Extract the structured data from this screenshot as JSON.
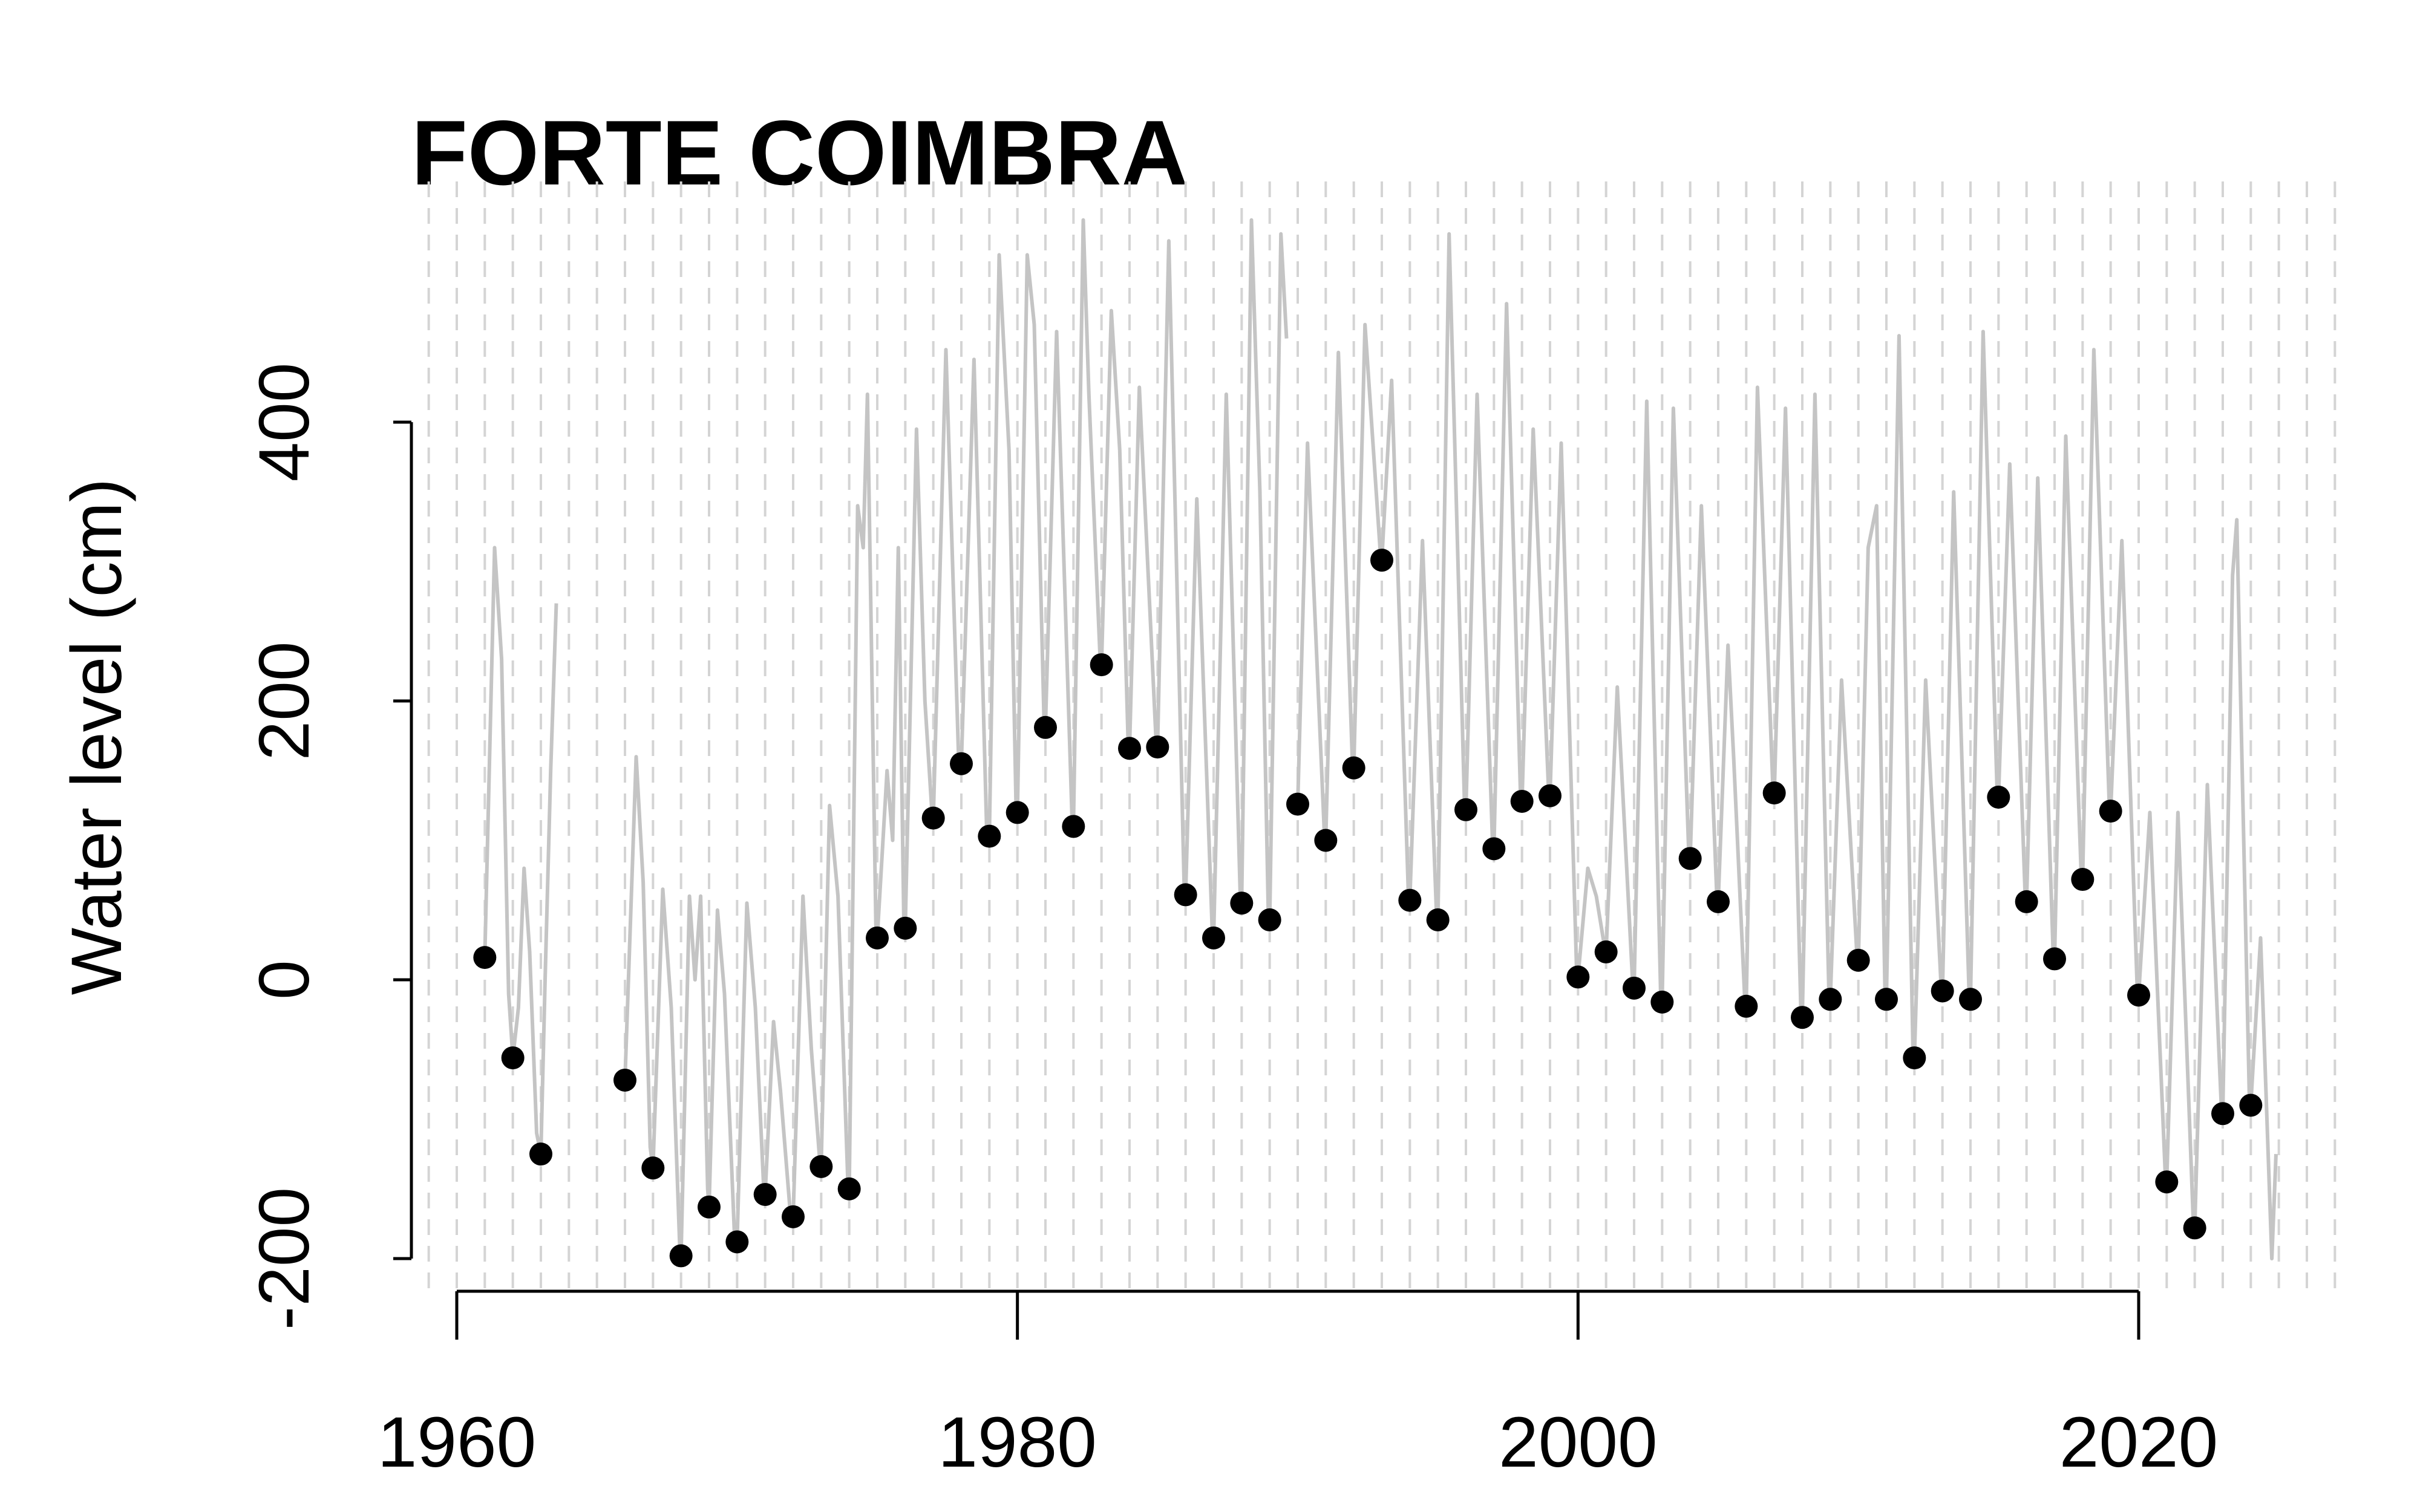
{
  "chart_data": {
    "type": "scatter",
    "title": "FORTE COIMBRA",
    "xlabel": "",
    "ylabel": "Water level (cm)",
    "xlim": [
      1958.5,
      2027.5
    ],
    "ylim": [
      -200,
      560
    ],
    "x_ticks": [
      1960,
      1980,
      2000,
      2020
    ],
    "y_ticks": [
      -200,
      0,
      200,
      400
    ],
    "x_tick_labels": [
      "1960",
      "1980",
      "2000",
      "2020"
    ],
    "y_tick_labels": [
      "-200",
      "0",
      "200",
      "400"
    ],
    "grid": "vertical dashed lines at every year",
    "colors": {
      "points": "#000000",
      "daily_line": "#c4c4c4",
      "grid": "#d4d4d4",
      "axes": "#000000"
    },
    "series": [
      {
        "style": "points",
        "x": [
          1961,
          1962,
          1963,
          1966,
          1967,
          1968,
          1969,
          1970,
          1971,
          1972,
          1973,
          1974,
          1975,
          1976,
          1977,
          1978,
          1979,
          1980,
          1981,
          1982,
          1983,
          1984,
          1985,
          1986,
          1987,
          1988,
          1989,
          1990,
          1991,
          1992,
          1993,
          1994,
          1995,
          1996,
          1997,
          1998,
          1999,
          2000,
          2001,
          2002,
          2003,
          2004,
          2005,
          2006,
          2007,
          2008,
          2009,
          2010,
          2011,
          2012,
          2013,
          2014,
          2015,
          2016,
          2017,
          2018,
          2019,
          2020,
          2021,
          2022,
          2023,
          2024
        ],
        "y": [
          16,
          -56,
          -125,
          -72,
          -135,
          -198,
          -163,
          -188,
          -154,
          -170,
          -134,
          -150,
          30,
          37,
          116,
          155,
          103,
          120,
          181,
          110,
          226,
          166,
          167,
          61,
          30,
          55,
          43,
          126,
          100,
          152,
          301,
          57,
          43,
          122,
          94,
          128,
          132,
          2,
          20,
          -6,
          -16,
          87,
          56,
          -19,
          134,
          -27,
          -14,
          14,
          -14,
          -56,
          -8,
          -14,
          131,
          56,
          15,
          72,
          121,
          -11,
          -145,
          -178,
          -96,
          -90
        ]
      },
      {
        "style": "line",
        "segments": [
          [
            [
              1961.0,
              16
            ],
            [
              1961.35,
              310
            ],
            [
              1961.6,
              230
            ],
            [
              1961.85,
              -10
            ],
            [
              1962.0,
              -56
            ],
            [
              1962.2,
              -20
            ],
            [
              1962.4,
              80
            ],
            [
              1962.6,
              20
            ],
            [
              1962.85,
              -110
            ],
            [
              1963.0,
              -125
            ],
            [
              1963.15,
              0
            ],
            [
              1963.35,
              150
            ],
            [
              1963.55,
              270
            ]
          ],
          [
            [
              1966.0,
              -72
            ],
            [
              1966.4,
              160
            ],
            [
              1966.65,
              70
            ],
            [
              1966.9,
              -120
            ],
            [
              1967.0,
              -135
            ],
            [
              1967.35,
              65
            ],
            [
              1967.65,
              -20
            ],
            [
              1967.95,
              -190
            ],
            [
              1968.0,
              -198
            ],
            [
              1968.3,
              60
            ],
            [
              1968.5,
              0
            ],
            [
              1968.7,
              60
            ],
            [
              1968.95,
              -150
            ],
            [
              1969.0,
              -163
            ],
            [
              1969.3,
              50
            ],
            [
              1969.55,
              -10
            ],
            [
              1969.9,
              -180
            ],
            [
              1970.0,
              -188
            ],
            [
              1970.35,
              55
            ],
            [
              1970.65,
              -20
            ],
            [
              1970.95,
              -150
            ],
            [
              1971.0,
              -154
            ],
            [
              1971.3,
              -30
            ],
            [
              1971.55,
              -80
            ],
            [
              1971.9,
              -168
            ],
            [
              1972.0,
              -170
            ],
            [
              1972.35,
              60
            ],
            [
              1972.65,
              -50
            ],
            [
              1972.95,
              -130
            ],
            [
              1973.0,
              -134
            ],
            [
              1973.3,
              125
            ],
            [
              1973.6,
              60
            ],
            [
              1973.95,
              -145
            ],
            [
              1974.0,
              -150
            ],
            [
              1974.3,
              340
            ],
            [
              1974.5,
              310
            ],
            [
              1974.65,
              420
            ],
            [
              1974.95,
              40
            ],
            [
              1975.0,
              30
            ],
            [
              1975.35,
              150
            ],
            [
              1975.55,
              100
            ],
            [
              1975.75,
              310
            ],
            [
              1975.95,
              40
            ],
            [
              1976.0,
              37
            ],
            [
              1976.4,
              395
            ],
            [
              1976.7,
              200
            ],
            [
              1976.95,
              120
            ],
            [
              1977.0,
              116
            ],
            [
              1977.45,
              452
            ],
            [
              1977.9,
              160
            ],
            [
              1978.0,
              155
            ],
            [
              1978.45,
              445
            ],
            [
              1978.9,
              110
            ],
            [
              1979.0,
              103
            ],
            [
              1979.35,
              520
            ],
            [
              1979.7,
              380
            ],
            [
              1979.95,
              125
            ],
            [
              1980.0,
              120
            ],
            [
              1980.35,
              520
            ],
            [
              1980.6,
              470
            ],
            [
              1980.95,
              185
            ],
            [
              1981.0,
              181
            ],
            [
              1981.4,
              465
            ],
            [
              1981.95,
              115
            ],
            [
              1982.0,
              110
            ],
            [
              1982.35,
              545
            ],
            [
              1982.55,
              420
            ],
            [
              1982.95,
              230
            ],
            [
              1983.0,
              226
            ],
            [
              1983.35,
              480
            ],
            [
              1983.65,
              380
            ],
            [
              1983.95,
              170
            ],
            [
              1984.0,
              166
            ],
            [
              1984.35,
              425
            ],
            [
              1984.95,
              170
            ],
            [
              1985.0,
              167
            ],
            [
              1985.4,
              530
            ],
            [
              1985.95,
              65
            ],
            [
              1986.0,
              61
            ],
            [
              1986.4,
              345
            ],
            [
              1986.95,
              35
            ],
            [
              1987.0,
              30
            ],
            [
              1987.45,
              420
            ],
            [
              1987.95,
              60
            ],
            [
              1988.0,
              55
            ],
            [
              1988.35,
              545
            ],
            [
              1988.65,
              350
            ],
            [
              1988.95,
              47
            ],
            [
              1989.0,
              43
            ],
            [
              1989.4,
              535
            ],
            [
              1989.6,
              460
            ]
          ],
          [
            [
              1990.0,
              126
            ],
            [
              1990.35,
              385
            ],
            [
              1990.95,
              105
            ],
            [
              1991.0,
              100
            ],
            [
              1991.45,
              450
            ],
            [
              1991.95,
              155
            ],
            [
              1992.0,
              152
            ],
            [
              1992.4,
              470
            ],
            [
              1992.95,
              305
            ],
            [
              1993.0,
              301
            ],
            [
              1993.35,
              430
            ],
            [
              1993.95,
              60
            ],
            [
              1994.0,
              57
            ],
            [
              1994.45,
              315
            ],
            [
              1994.95,
              47
            ],
            [
              1995.0,
              43
            ],
            [
              1995.4,
              535
            ],
            [
              1995.95,
              125
            ],
            [
              1996.0,
              122
            ],
            [
              1996.4,
              420
            ],
            [
              1996.95,
              98
            ],
            [
              1997.0,
              94
            ],
            [
              1997.45,
              485
            ],
            [
              1997.95,
              130
            ],
            [
              1998.0,
              128
            ],
            [
              1998.4,
              395
            ],
            [
              1998.95,
              135
            ],
            [
              1999.0,
              132
            ],
            [
              1999.4,
              385
            ],
            [
              1999.95,
              6
            ],
            [
              2000.0,
              2
            ],
            [
              2000.35,
              80
            ],
            [
              2000.65,
              60
            ],
            [
              2000.95,
              23
            ],
            [
              2001.0,
              20
            ],
            [
              2001.4,
              210
            ],
            [
              2001.95,
              -3
            ],
            [
              2002.0,
              -6
            ],
            [
              2002.45,
              415
            ],
            [
              2002.95,
              -12
            ],
            [
              2003.0,
              -16
            ],
            [
              2003.4,
              410
            ],
            [
              2003.95,
              90
            ],
            [
              2004.0,
              87
            ],
            [
              2004.4,
              340
            ],
            [
              2004.95,
              60
            ],
            [
              2005.0,
              56
            ],
            [
              2005.35,
              240
            ],
            [
              2005.55,
              160
            ],
            [
              2005.95,
              -15
            ],
            [
              2006.0,
              -19
            ],
            [
              2006.4,
              425
            ],
            [
              2006.95,
              138
            ],
            [
              2007.0,
              134
            ],
            [
              2007.4,
              410
            ],
            [
              2007.95,
              -23
            ],
            [
              2008.0,
              -27
            ],
            [
              2008.45,
              420
            ],
            [
              2008.95,
              -10
            ],
            [
              2009.0,
              -14
            ],
            [
              2009.4,
              215
            ],
            [
              2009.95,
              17
            ],
            [
              2010.0,
              14
            ],
            [
              2010.35,
              310
            ],
            [
              2010.65,
              340
            ],
            [
              2010.95,
              -10
            ],
            [
              2011.0,
              -14
            ],
            [
              2011.45,
              462
            ],
            [
              2011.95,
              -52
            ],
            [
              2012.0,
              -56
            ],
            [
              2012.4,
              215
            ],
            [
              2012.95,
              -4
            ],
            [
              2013.0,
              -8
            ],
            [
              2013.4,
              350
            ],
            [
              2013.95,
              -10
            ],
            [
              2014.0,
              -14
            ],
            [
              2014.45,
              465
            ],
            [
              2014.95,
              135
            ],
            [
              2015.0,
              131
            ],
            [
              2015.4,
              370
            ],
            [
              2015.95,
              60
            ],
            [
              2016.0,
              56
            ],
            [
              2016.4,
              360
            ],
            [
              2016.95,
              18
            ],
            [
              2017.0,
              15
            ],
            [
              2017.4,
              390
            ],
            [
              2017.95,
              75
            ],
            [
              2018.0,
              72
            ],
            [
              2018.4,
              452
            ],
            [
              2018.95,
              125
            ],
            [
              2019.0,
              121
            ],
            [
              2019.4,
              315
            ],
            [
              2019.95,
              -8
            ],
            [
              2020.0,
              -11
            ],
            [
              2020.4,
              120
            ],
            [
              2020.95,
              -140
            ],
            [
              2021.0,
              -145
            ],
            [
              2021.4,
              120
            ],
            [
              2021.95,
              -175
            ],
            [
              2022.0,
              -178
            ],
            [
              2022.45,
              140
            ],
            [
              2022.95,
              -92
            ],
            [
              2023.0,
              -96
            ],
            [
              2023.35,
              290
            ],
            [
              2023.5,
              330
            ],
            [
              2023.65,
              190
            ],
            [
              2023.95,
              -86
            ],
            [
              2024.0,
              -90
            ],
            [
              2024.35,
              30
            ],
            [
              2024.75,
              -200
            ],
            [
              2024.9,
              -125
            ]
          ]
        ]
      }
    ]
  }
}
